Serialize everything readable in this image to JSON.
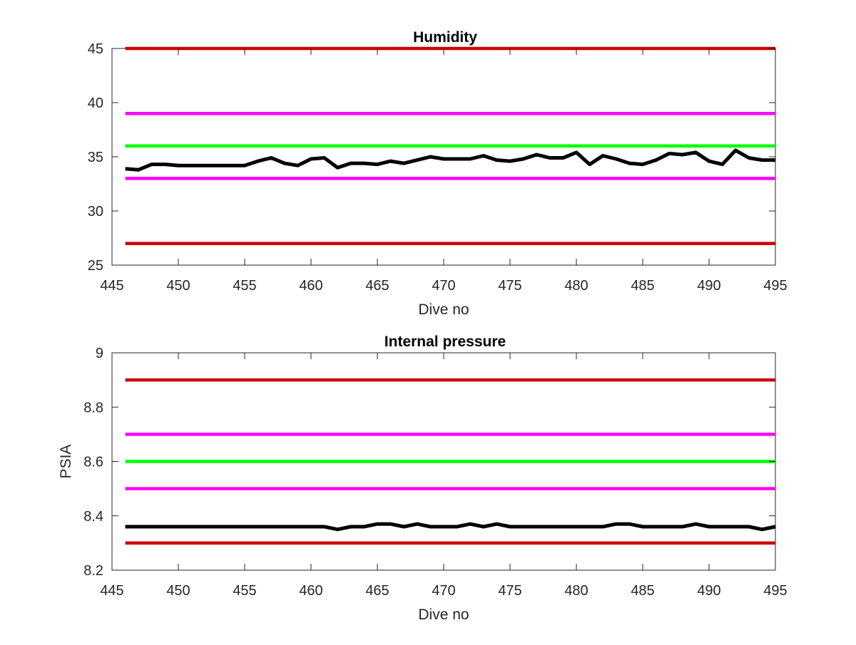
{
  "chart_data": [
    {
      "type": "line",
      "title": "Humidity",
      "xlabel": "Dive no",
      "ylabel": "",
      "xlim": [
        445,
        495
      ],
      "ylim": [
        25,
        45
      ],
      "xticks": [
        445,
        450,
        455,
        460,
        465,
        470,
        475,
        480,
        485,
        490,
        495
      ],
      "yticks": [
        25,
        30,
        35,
        40,
        45
      ],
      "grid": false,
      "thresholds": [
        {
          "value": 45,
          "color": "#cc0000"
        },
        {
          "value": 39,
          "color": "#ff00ff"
        },
        {
          "value": 36,
          "color": "#00ff00"
        },
        {
          "value": 33,
          "color": "#ff00ff"
        },
        {
          "value": 27,
          "color": "#cc0000"
        }
      ],
      "series": [
        {
          "color": "#000000",
          "x": [
            446,
            447,
            448,
            449,
            450,
            451,
            452,
            453,
            454,
            455,
            456,
            457,
            458,
            459,
            460,
            461,
            462,
            463,
            464,
            465,
            466,
            467,
            468,
            469,
            470,
            471,
            472,
            473,
            474,
            475,
            476,
            477,
            478,
            479,
            480,
            481,
            482,
            483,
            484,
            485,
            486,
            487,
            488,
            489,
            490,
            491,
            492,
            493,
            494,
            495
          ],
          "values": [
            33.9,
            33.8,
            34.3,
            34.3,
            34.2,
            34.2,
            34.2,
            34.2,
            34.2,
            34.2,
            34.6,
            34.9,
            34.4,
            34.2,
            34.8,
            34.9,
            34.0,
            34.4,
            34.4,
            34.3,
            34.6,
            34.4,
            34.7,
            35.0,
            34.8,
            34.8,
            34.8,
            35.1,
            34.7,
            34.6,
            34.8,
            35.2,
            34.9,
            34.9,
            35.4,
            34.3,
            35.1,
            34.8,
            34.4,
            34.3,
            34.7,
            35.3,
            35.2,
            35.4,
            34.6,
            34.3,
            35.6,
            34.9,
            34.7,
            34.7
          ]
        }
      ]
    },
    {
      "type": "line",
      "title": "Internal pressure",
      "xlabel": "Dive no",
      "ylabel": "PSIA",
      "xlim": [
        445,
        495
      ],
      "ylim": [
        8.2,
        9
      ],
      "xticks": [
        445,
        450,
        455,
        460,
        465,
        470,
        475,
        480,
        485,
        490,
        495
      ],
      "yticks": [
        "8.2",
        "8.4",
        "8.6",
        "8.8",
        "9"
      ],
      "grid": false,
      "thresholds": [
        {
          "value": 8.9,
          "color": "#cc0000"
        },
        {
          "value": 8.7,
          "color": "#ff00ff"
        },
        {
          "value": 8.6,
          "color": "#00ff00"
        },
        {
          "value": 8.5,
          "color": "#ff00ff"
        },
        {
          "value": 8.3,
          "color": "#cc0000"
        }
      ],
      "series": [
        {
          "color": "#000000",
          "x": [
            446,
            447,
            448,
            449,
            450,
            451,
            452,
            453,
            454,
            455,
            456,
            457,
            458,
            459,
            460,
            461,
            462,
            463,
            464,
            465,
            466,
            467,
            468,
            469,
            470,
            471,
            472,
            473,
            474,
            475,
            476,
            477,
            478,
            479,
            480,
            481,
            482,
            483,
            484,
            485,
            486,
            487,
            488,
            489,
            490,
            491,
            492,
            493,
            494,
            495
          ],
          "values": [
            8.36,
            8.36,
            8.36,
            8.36,
            8.36,
            8.36,
            8.36,
            8.36,
            8.36,
            8.36,
            8.36,
            8.36,
            8.36,
            8.36,
            8.36,
            8.36,
            8.35,
            8.36,
            8.36,
            8.37,
            8.37,
            8.36,
            8.37,
            8.36,
            8.36,
            8.36,
            8.37,
            8.36,
            8.37,
            8.36,
            8.36,
            8.36,
            8.36,
            8.36,
            8.36,
            8.36,
            8.36,
            8.37,
            8.37,
            8.36,
            8.36,
            8.36,
            8.36,
            8.37,
            8.36,
            8.36,
            8.36,
            8.36,
            8.35,
            8.36
          ]
        }
      ]
    }
  ]
}
